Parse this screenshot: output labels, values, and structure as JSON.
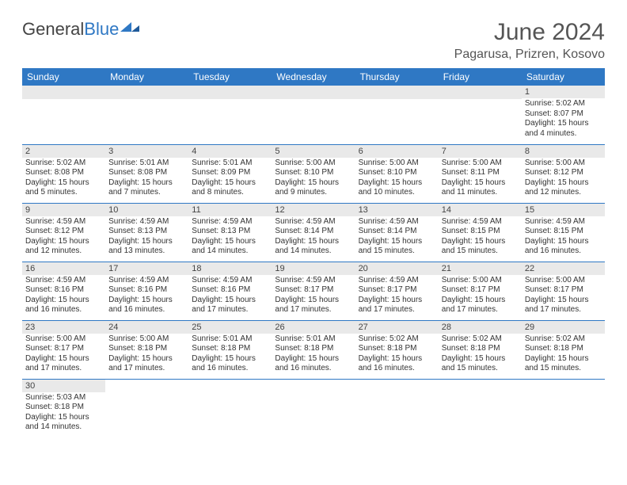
{
  "logo": {
    "text1": "General",
    "text2": "Blue"
  },
  "title": "June 2024",
  "location": "Pagarusa, Prizren, Kosovo",
  "colors": {
    "header_bg": "#2f78c4",
    "header_fg": "#ffffff",
    "daynum_bg": "#e9e9e9",
    "rule": "#2f78c4",
    "text": "#333333",
    "title": "#555555"
  },
  "days_of_week": [
    "Sunday",
    "Monday",
    "Tuesday",
    "Wednesday",
    "Thursday",
    "Friday",
    "Saturday"
  ],
  "weeks": [
    [
      null,
      null,
      null,
      null,
      null,
      null,
      {
        "n": "1",
        "sr": "5:02 AM",
        "ss": "8:07 PM",
        "dl": "15 hours and 4 minutes."
      }
    ],
    [
      {
        "n": "2",
        "sr": "5:02 AM",
        "ss": "8:08 PM",
        "dl": "15 hours and 5 minutes."
      },
      {
        "n": "3",
        "sr": "5:01 AM",
        "ss": "8:08 PM",
        "dl": "15 hours and 7 minutes."
      },
      {
        "n": "4",
        "sr": "5:01 AM",
        "ss": "8:09 PM",
        "dl": "15 hours and 8 minutes."
      },
      {
        "n": "5",
        "sr": "5:00 AM",
        "ss": "8:10 PM",
        "dl": "15 hours and 9 minutes."
      },
      {
        "n": "6",
        "sr": "5:00 AM",
        "ss": "8:10 PM",
        "dl": "15 hours and 10 minutes."
      },
      {
        "n": "7",
        "sr": "5:00 AM",
        "ss": "8:11 PM",
        "dl": "15 hours and 11 minutes."
      },
      {
        "n": "8",
        "sr": "5:00 AM",
        "ss": "8:12 PM",
        "dl": "15 hours and 12 minutes."
      }
    ],
    [
      {
        "n": "9",
        "sr": "4:59 AM",
        "ss": "8:12 PM",
        "dl": "15 hours and 12 minutes."
      },
      {
        "n": "10",
        "sr": "4:59 AM",
        "ss": "8:13 PM",
        "dl": "15 hours and 13 minutes."
      },
      {
        "n": "11",
        "sr": "4:59 AM",
        "ss": "8:13 PM",
        "dl": "15 hours and 14 minutes."
      },
      {
        "n": "12",
        "sr": "4:59 AM",
        "ss": "8:14 PM",
        "dl": "15 hours and 14 minutes."
      },
      {
        "n": "13",
        "sr": "4:59 AM",
        "ss": "8:14 PM",
        "dl": "15 hours and 15 minutes."
      },
      {
        "n": "14",
        "sr": "4:59 AM",
        "ss": "8:15 PM",
        "dl": "15 hours and 15 minutes."
      },
      {
        "n": "15",
        "sr": "4:59 AM",
        "ss": "8:15 PM",
        "dl": "15 hours and 16 minutes."
      }
    ],
    [
      {
        "n": "16",
        "sr": "4:59 AM",
        "ss": "8:16 PM",
        "dl": "15 hours and 16 minutes."
      },
      {
        "n": "17",
        "sr": "4:59 AM",
        "ss": "8:16 PM",
        "dl": "15 hours and 16 minutes."
      },
      {
        "n": "18",
        "sr": "4:59 AM",
        "ss": "8:16 PM",
        "dl": "15 hours and 17 minutes."
      },
      {
        "n": "19",
        "sr": "4:59 AM",
        "ss": "8:17 PM",
        "dl": "15 hours and 17 minutes."
      },
      {
        "n": "20",
        "sr": "4:59 AM",
        "ss": "8:17 PM",
        "dl": "15 hours and 17 minutes."
      },
      {
        "n": "21",
        "sr": "5:00 AM",
        "ss": "8:17 PM",
        "dl": "15 hours and 17 minutes."
      },
      {
        "n": "22",
        "sr": "5:00 AM",
        "ss": "8:17 PM",
        "dl": "15 hours and 17 minutes."
      }
    ],
    [
      {
        "n": "23",
        "sr": "5:00 AM",
        "ss": "8:17 PM",
        "dl": "15 hours and 17 minutes."
      },
      {
        "n": "24",
        "sr": "5:00 AM",
        "ss": "8:18 PM",
        "dl": "15 hours and 17 minutes."
      },
      {
        "n": "25",
        "sr": "5:01 AM",
        "ss": "8:18 PM",
        "dl": "15 hours and 16 minutes."
      },
      {
        "n": "26",
        "sr": "5:01 AM",
        "ss": "8:18 PM",
        "dl": "15 hours and 16 minutes."
      },
      {
        "n": "27",
        "sr": "5:02 AM",
        "ss": "8:18 PM",
        "dl": "15 hours and 16 minutes."
      },
      {
        "n": "28",
        "sr": "5:02 AM",
        "ss": "8:18 PM",
        "dl": "15 hours and 15 minutes."
      },
      {
        "n": "29",
        "sr": "5:02 AM",
        "ss": "8:18 PM",
        "dl": "15 hours and 15 minutes."
      }
    ],
    [
      {
        "n": "30",
        "sr": "5:03 AM",
        "ss": "8:18 PM",
        "dl": "15 hours and 14 minutes."
      },
      null,
      null,
      null,
      null,
      null,
      null
    ]
  ],
  "labels": {
    "sunrise": "Sunrise: ",
    "sunset": "Sunset: ",
    "daylight": "Daylight: "
  }
}
